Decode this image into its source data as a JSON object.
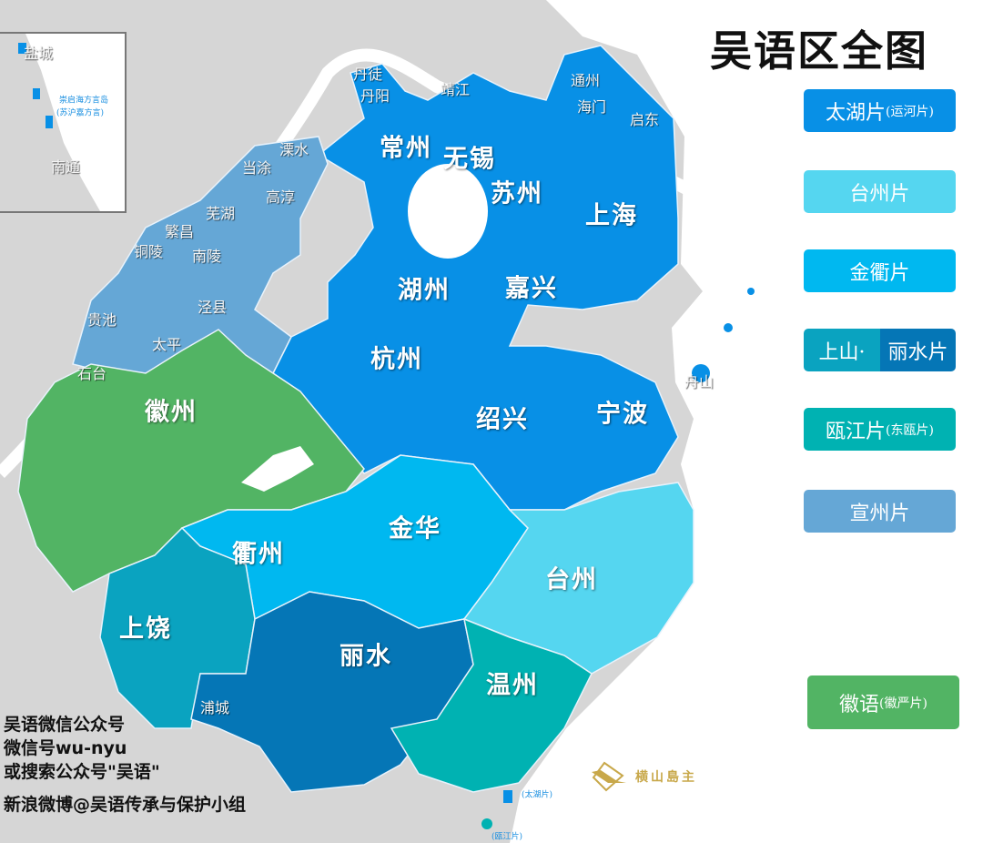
{
  "title": "吴语区全图",
  "colors": {
    "taihu": "#0890e6",
    "taizhou": "#55d6f0",
    "jinqu": "#00b8f0",
    "shangshan": "#0aa3c0",
    "lishui": "#0576b6",
    "oujiang": "#00b2b2",
    "xuanzhou": "#65a7d6",
    "huiyu": "#52b464",
    "non_wu": "#d6d6d6",
    "sea": "#ffffff"
  },
  "legend": [
    {
      "label": "太湖片",
      "note": "(运河片)",
      "color": "#0890e6"
    },
    {
      "label": "台州片",
      "note": "",
      "color": "#55d6f0"
    },
    {
      "label": "金衢片",
      "note": "",
      "color": "#00b8f0"
    },
    {
      "label_a": "上山·",
      "label_b": "丽水片",
      "color_a": "#0aa3c0",
      "color_b": "#0576b6"
    },
    {
      "label": "瓯江片",
      "note": "(东瓯片)",
      "color": "#00b2b2"
    },
    {
      "label": "宣州片",
      "note": "",
      "color": "#65a7d6"
    },
    {
      "label": "徽语",
      "note": "(徽严片)",
      "color": "#52b464"
    }
  ],
  "major_cities": [
    "常州",
    "无锡",
    "苏州",
    "上海",
    "湖州",
    "嘉兴",
    "杭州",
    "绍兴",
    "宁波",
    "徽州",
    "金华",
    "衢州",
    "台州",
    "上饶",
    "丽水",
    "温州"
  ],
  "minor_places": [
    "丹徒",
    "丹阳",
    "靖江",
    "通州",
    "海门",
    "启东",
    "溧水",
    "当涂",
    "高淳",
    "芜湖",
    "繁昌",
    "铜陵",
    "南陵",
    "泾县",
    "贵池",
    "太平",
    "石台",
    "舟山",
    "浦城"
  ],
  "small_notes": [
    "(太湖片)",
    "(瓯江片)"
  ],
  "inset": {
    "cities": [
      "盐城",
      "南通"
    ],
    "note_1": "崇启海方言岛",
    "note_2": "(苏沪嘉方言)"
  },
  "credits": [
    "吴语微信公众号",
    "微信号wu-nyu",
    "或搜索公众号\"吴语\"",
    "新浪微博@吴语传承与保护小组"
  ],
  "watermark": "横山島主"
}
